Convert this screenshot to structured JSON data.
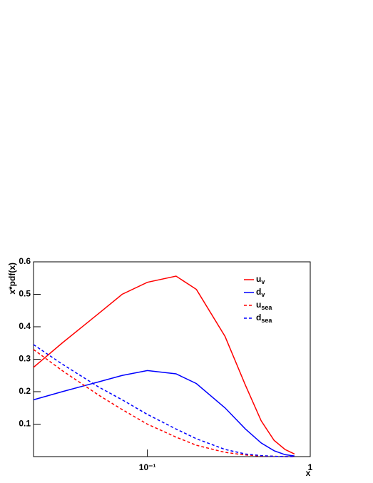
{
  "chart_data": {
    "type": "line",
    "x_label": "x",
    "y_label": "x*pdf(x)",
    "x": [
      0.02,
      0.03,
      0.05,
      0.07,
      0.1,
      0.15,
      0.2,
      0.3,
      0.4,
      0.5,
      0.6,
      0.7,
      0.8
    ],
    "series": [
      {
        "name": "u",
        "subscript": "v",
        "color": "#ff0000",
        "dashed": false,
        "values": [
          0.275,
          0.35,
          0.44,
          0.5,
          0.537,
          0.556,
          0.515,
          0.37,
          0.22,
          0.11,
          0.05,
          0.022,
          0.008
        ]
      },
      {
        "name": "d",
        "subscript": "v",
        "color": "#0000ff",
        "dashed": false,
        "values": [
          0.175,
          0.2,
          0.23,
          0.25,
          0.265,
          0.255,
          0.225,
          0.15,
          0.085,
          0.042,
          0.018,
          0.006,
          0.002
        ]
      },
      {
        "name": "u",
        "subscript": "sea",
        "color": "#ff0000",
        "dashed": true,
        "values": [
          0.33,
          0.265,
          0.19,
          0.145,
          0.1,
          0.06,
          0.035,
          0.013,
          0.005,
          0.002,
          0.001,
          0,
          0
        ]
      },
      {
        "name": "d",
        "subscript": "sea",
        "color": "#0000ff",
        "dashed": true,
        "values": [
          0.345,
          0.285,
          0.215,
          0.175,
          0.13,
          0.085,
          0.055,
          0.022,
          0.008,
          0.003,
          0.001,
          0,
          0
        ]
      }
    ],
    "xlog": true,
    "xlim": [
      0.02,
      1
    ],
    "xticks": [
      {
        "value": 0.1,
        "label": "10⁻¹"
      },
      1
    ],
    "ylim": [
      0,
      0.6
    ],
    "yticks": [
      0.1,
      0.2,
      0.3,
      0.4,
      0.5,
      0.6
    ],
    "grid": false,
    "legend": "top-right"
  }
}
